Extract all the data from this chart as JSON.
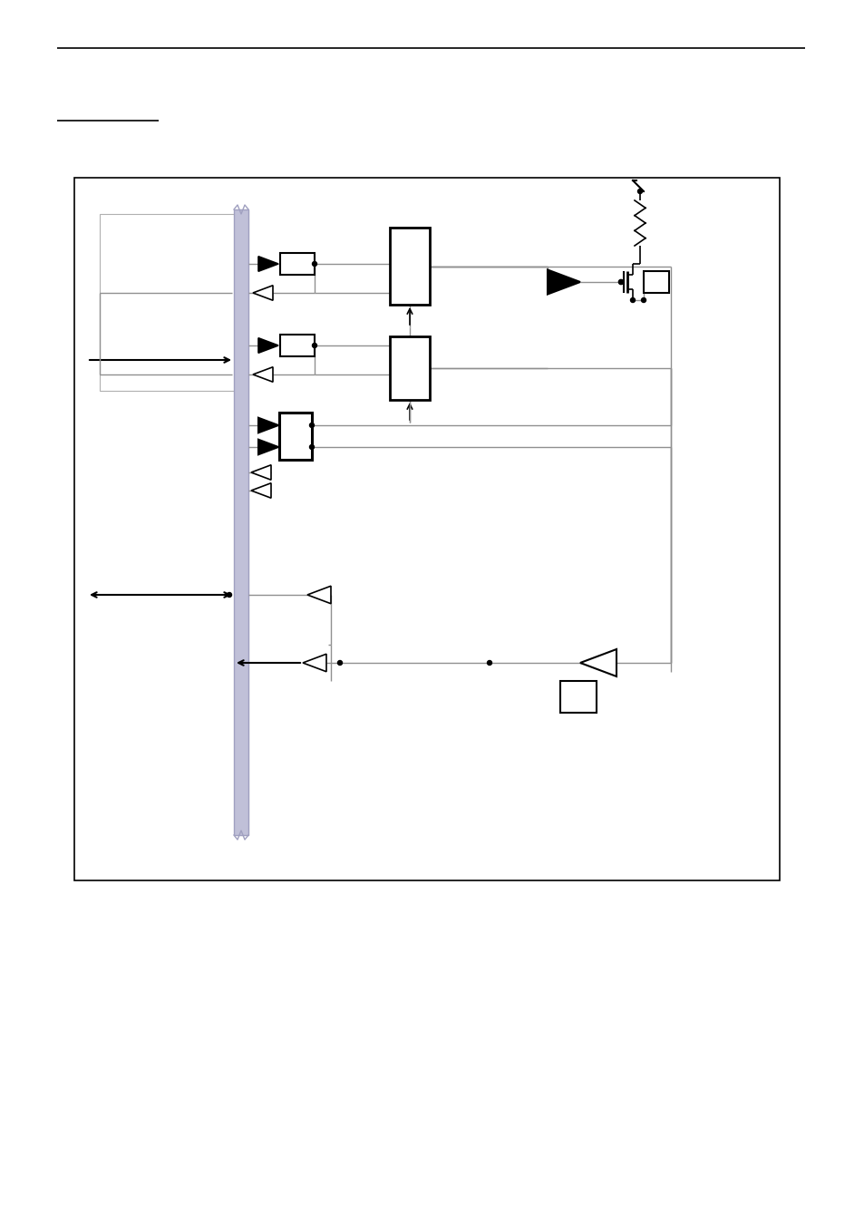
{
  "fig_width": 9.54,
  "fig_height": 13.51,
  "dpi": 100,
  "bg_color": "#ffffff",
  "line_color": "#909090",
  "black": "#000000",
  "bus_color": "#c0c0d8",
  "bus_edge": "#a0a0c0"
}
